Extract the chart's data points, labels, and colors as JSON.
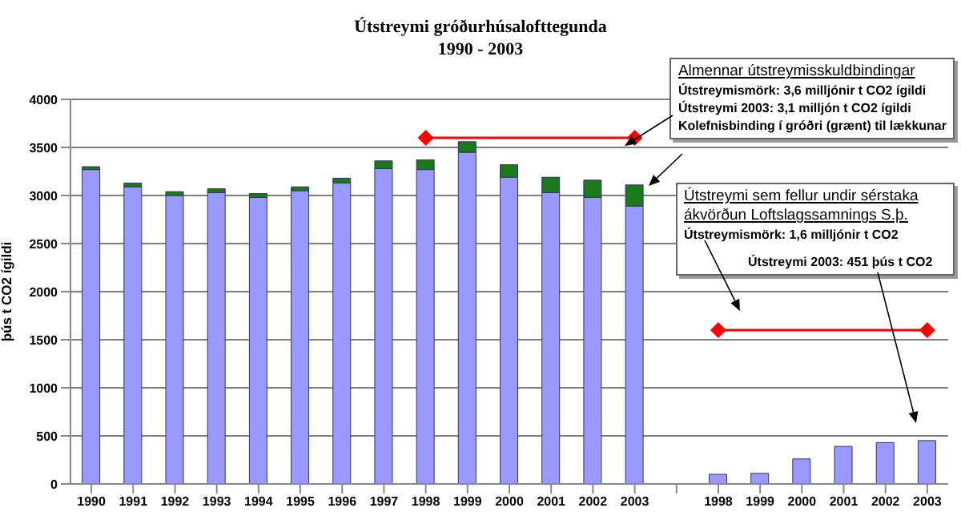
{
  "chart_data": {
    "type": "bar",
    "title": "Útstreymi gróðurhúsalofttegunda",
    "subtitle": "1990 - 2003",
    "ylabel": "þús t CO2 ígildi",
    "categories": [
      "1990",
      "1991",
      "1992",
      "1993",
      "1994",
      "1995",
      "1996",
      "1997",
      "1998",
      "1999",
      "2000",
      "2001",
      "2002",
      "2003",
      null,
      "1998",
      "1999",
      "2000",
      "2001",
      "2002",
      "2003"
    ],
    "stacked": true,
    "series": [
      {
        "color": "#9999ff",
        "values": [
          3270,
          3090,
          3000,
          3030,
          2980,
          3050,
          3130,
          3280,
          3270,
          3450,
          3190,
          3030,
          2980,
          2890,
          null,
          100,
          110,
          260,
          390,
          430,
          451
        ]
      },
      {
        "color": "#1a7a1a",
        "values": [
          30,
          40,
          40,
          40,
          40,
          40,
          50,
          80,
          100,
          110,
          130,
          160,
          180,
          220,
          null,
          null,
          null,
          null,
          null,
          null,
          null
        ]
      },
      {
        "type": "line",
        "color": "#ff0000",
        "marker": "diamond",
        "values": [
          null,
          null,
          null,
          null,
          null,
          null,
          null,
          null,
          3600,
          null,
          null,
          null,
          null,
          3600,
          null,
          null,
          null,
          null,
          null,
          null,
          null
        ]
      },
      {
        "type": "line",
        "color": "#ff0000",
        "marker": "diamond",
        "values": [
          null,
          null,
          null,
          null,
          null,
          null,
          null,
          null,
          null,
          null,
          null,
          null,
          null,
          null,
          null,
          1600,
          null,
          null,
          null,
          null,
          1600
        ]
      }
    ],
    "ylim": [
      0,
      4000
    ],
    "yticks": [
      0,
      500,
      1000,
      1500,
      2000,
      2500,
      3000,
      3500,
      4000
    ],
    "grid": "y",
    "legend": false,
    "annotations": [
      "Almennar útstreymisskuldbindingar",
      "Útstreymismörk:  3,6 milljónir t CO2 ígildi",
      "Útstreymi 2003:  3,1 milljón t CO2 ígildi",
      "Kolefnisbinding í gróðri (grænt) til lækkunar",
      "Útstreymi sem fellur undir sérstaka ákvörðun Loftslagssamnings S.þ.",
      "Útstreymismörk:  1,6 milljónir t CO2",
      "Útstreymi 2003:  451 þús t CO2"
    ]
  }
}
